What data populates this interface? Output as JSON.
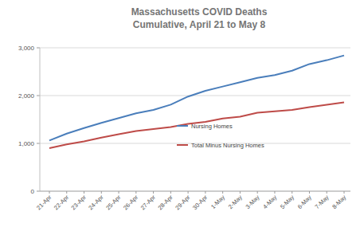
{
  "chart_data": {
    "type": "line",
    "title": "Massachusetts COVID Deaths",
    "subtitle": "Cumulative, April 21 to May 8",
    "categories": [
      "21-Apr",
      "22-Apr",
      "23-Apr",
      "24-Apr",
      "25-Apr",
      "26-Apr",
      "27-Apr",
      "28-Apr",
      "29-Apr",
      "30-Apr",
      "1-May",
      "2-May",
      "3-May",
      "4-May",
      "5-May",
      "6-May",
      "7-May",
      "8-May"
    ],
    "series": [
      {
        "name": "Nursing Homes",
        "color": "#4a7ebb",
        "values": [
          1060,
          1205,
          1320,
          1430,
          1530,
          1630,
          1700,
          1810,
          1980,
          2100,
          2190,
          2280,
          2370,
          2430,
          2520,
          2660,
          2740,
          2840
        ]
      },
      {
        "name": "Total Minus Nursing Homes",
        "color": "#be4b48",
        "values": [
          900,
          980,
          1040,
          1120,
          1190,
          1260,
          1300,
          1340,
          1410,
          1450,
          1520,
          1560,
          1640,
          1670,
          1700,
          1760,
          1810,
          1860
        ]
      }
    ],
    "ylim": [
      0,
      3000
    ],
    "yticks": [
      0,
      {
        "value": 1000,
        "label": "1,000"
      },
      {
        "value": 2000,
        "label": "2,000"
      },
      {
        "value": 3000,
        "label": "3,000"
      }
    ],
    "grid": true,
    "legend": "center"
  }
}
